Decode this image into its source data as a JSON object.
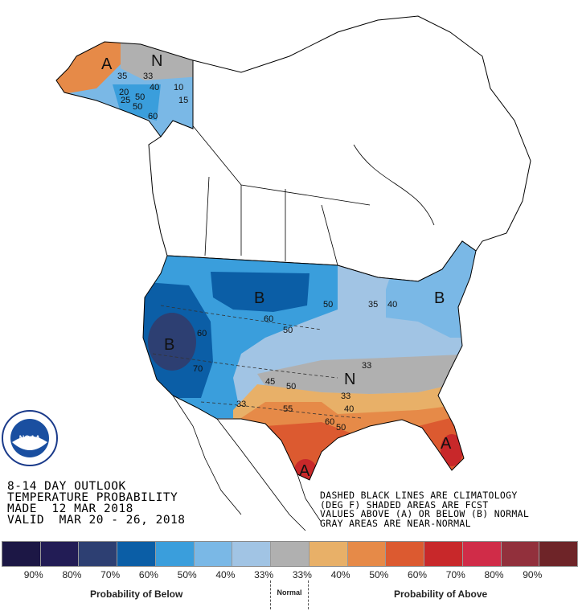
{
  "title": {
    "line1": "8-14 DAY OUTLOOK",
    "line2": "TEMPERATURE PROBABILITY",
    "line3": "MADE  12 MAR 2018",
    "line4": "VALID  MAR 20 - 26, 2018"
  },
  "note": {
    "line1": "DASHED BLACK LINES ARE CLIMATOLOGY",
    "line2": "(DEG F) SHADED AREAS ARE FCST",
    "line3": "VALUES ABOVE (A) OR BELOW (B) NORMAL",
    "line4": "GRAY AREAS ARE NEAR-NORMAL"
  },
  "logo_text": "NOAA",
  "map_labels": {
    "alaska_above": "A",
    "alaska_normal": "N",
    "west_below": "B",
    "plains_below": "B",
    "northeast_below": "B",
    "southeast_normal": "N",
    "texas_above": "A",
    "florida_above": "A",
    "contours": [
      "35",
      "33",
      "40",
      "10",
      "15",
      "20",
      "25",
      "50",
      "50",
      "60",
      "60",
      "70",
      "50",
      "60",
      "35",
      "40",
      "50",
      "33",
      "33",
      "33",
      "45",
      "50",
      "55",
      "40",
      "60",
      "50"
    ]
  },
  "legend": {
    "colors": [
      "#1c1745",
      "#221c55",
      "#2d3f72",
      "#0b5ea6",
      "#3a9edc",
      "#7ab8e6",
      "#a1c4e4",
      "#b0b0b0",
      "#e8b068",
      "#e68a48",
      "#dc5a30",
      "#c8282a",
      "#d02c48",
      "#92303c",
      "#6e2428"
    ],
    "ticks": [
      "90%",
      "80%",
      "70%",
      "60%",
      "50%",
      "40%",
      "33%",
      "33%",
      "40%",
      "50%",
      "60%",
      "70%",
      "80%",
      "90%"
    ],
    "below_label": "Probability of Below",
    "normal_label": "Normal",
    "above_label": "Probability of Above"
  }
}
